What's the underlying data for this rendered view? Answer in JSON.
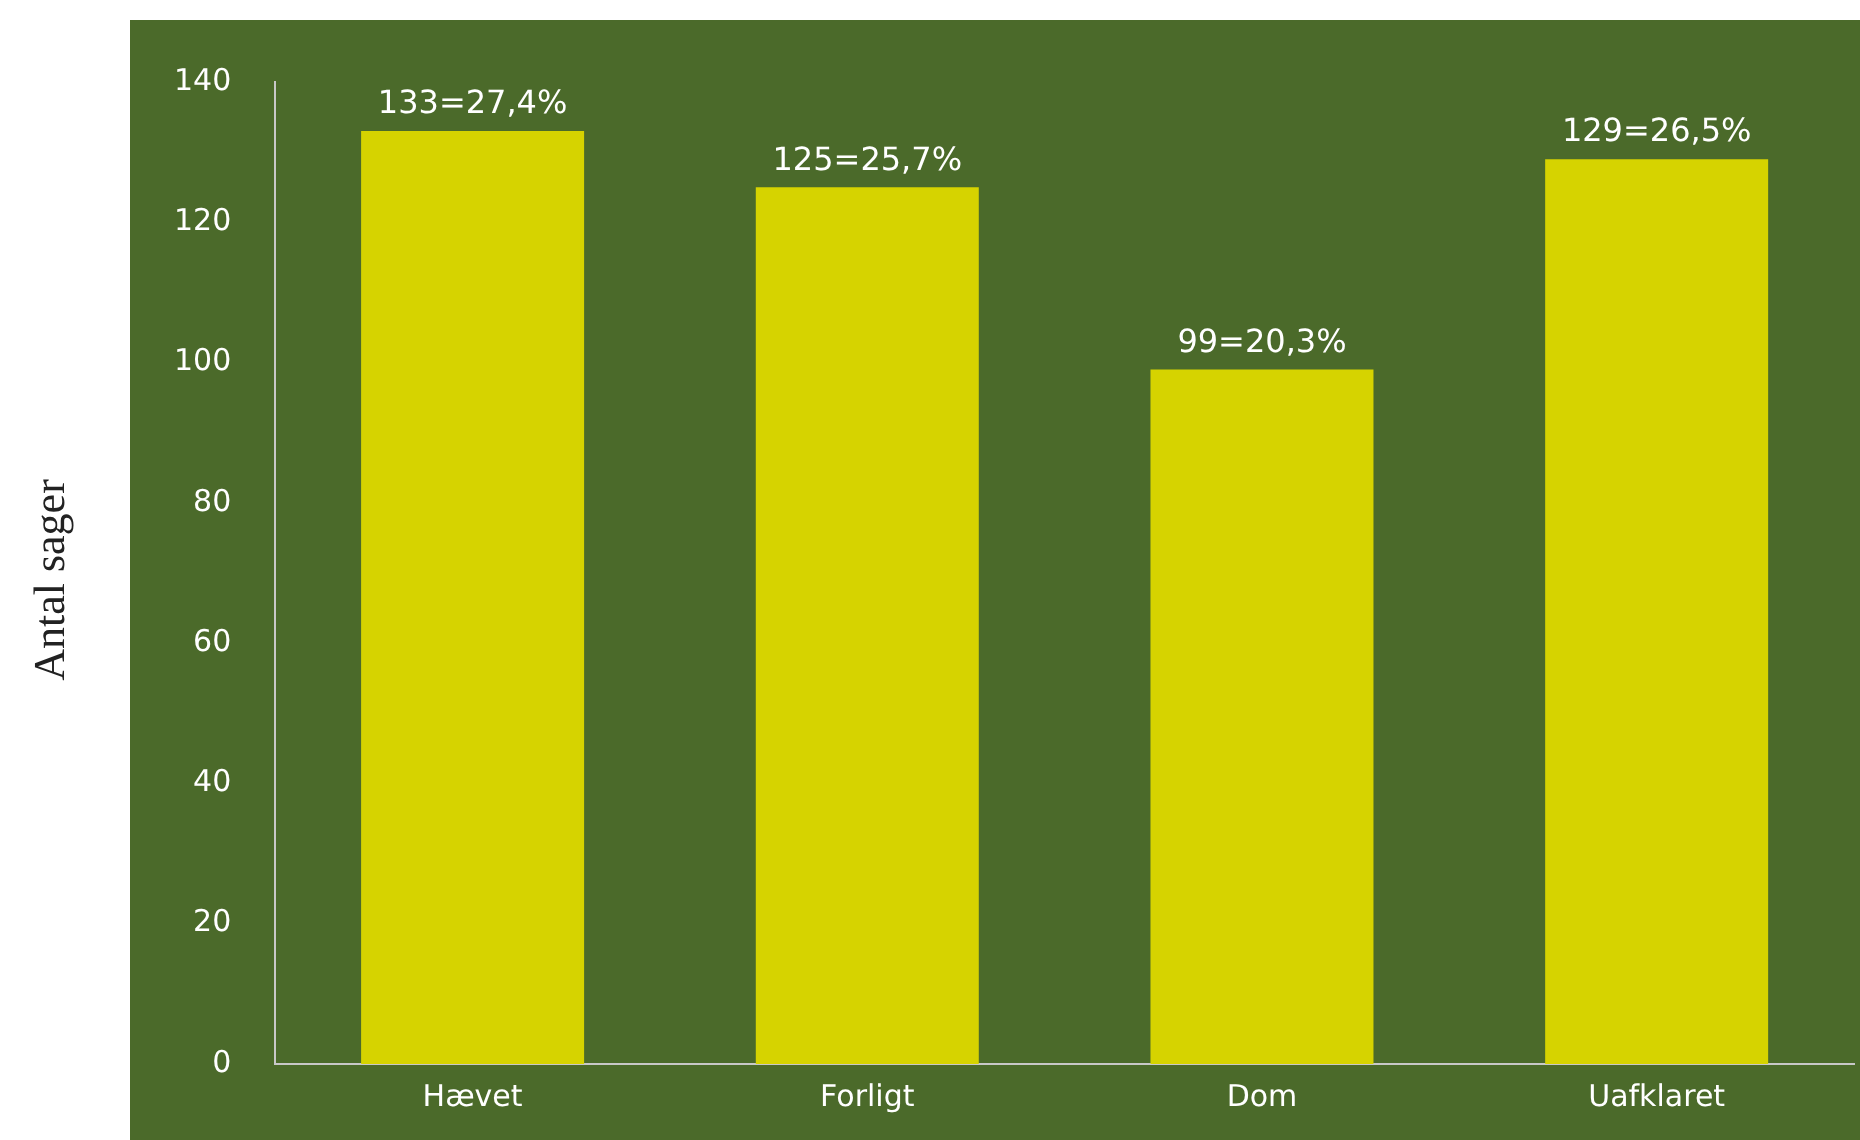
{
  "chart_data": {
    "type": "bar",
    "ylabel": "Antal sager",
    "categories": [
      "Hævet",
      "Forligt",
      "Dom",
      "Uafklaret"
    ],
    "values": [
      133,
      125,
      99,
      129
    ],
    "color": "#d6d300",
    "value_labels": [
      "133=27,4%",
      "125=25,7%",
      "99=20,3%",
      "129=26,5%"
    ],
    "ylim": [
      0,
      140
    ],
    "yticks": [
      0,
      20,
      40,
      60,
      80,
      100,
      120,
      140
    ],
    "grid": false,
    "legend": false
  }
}
